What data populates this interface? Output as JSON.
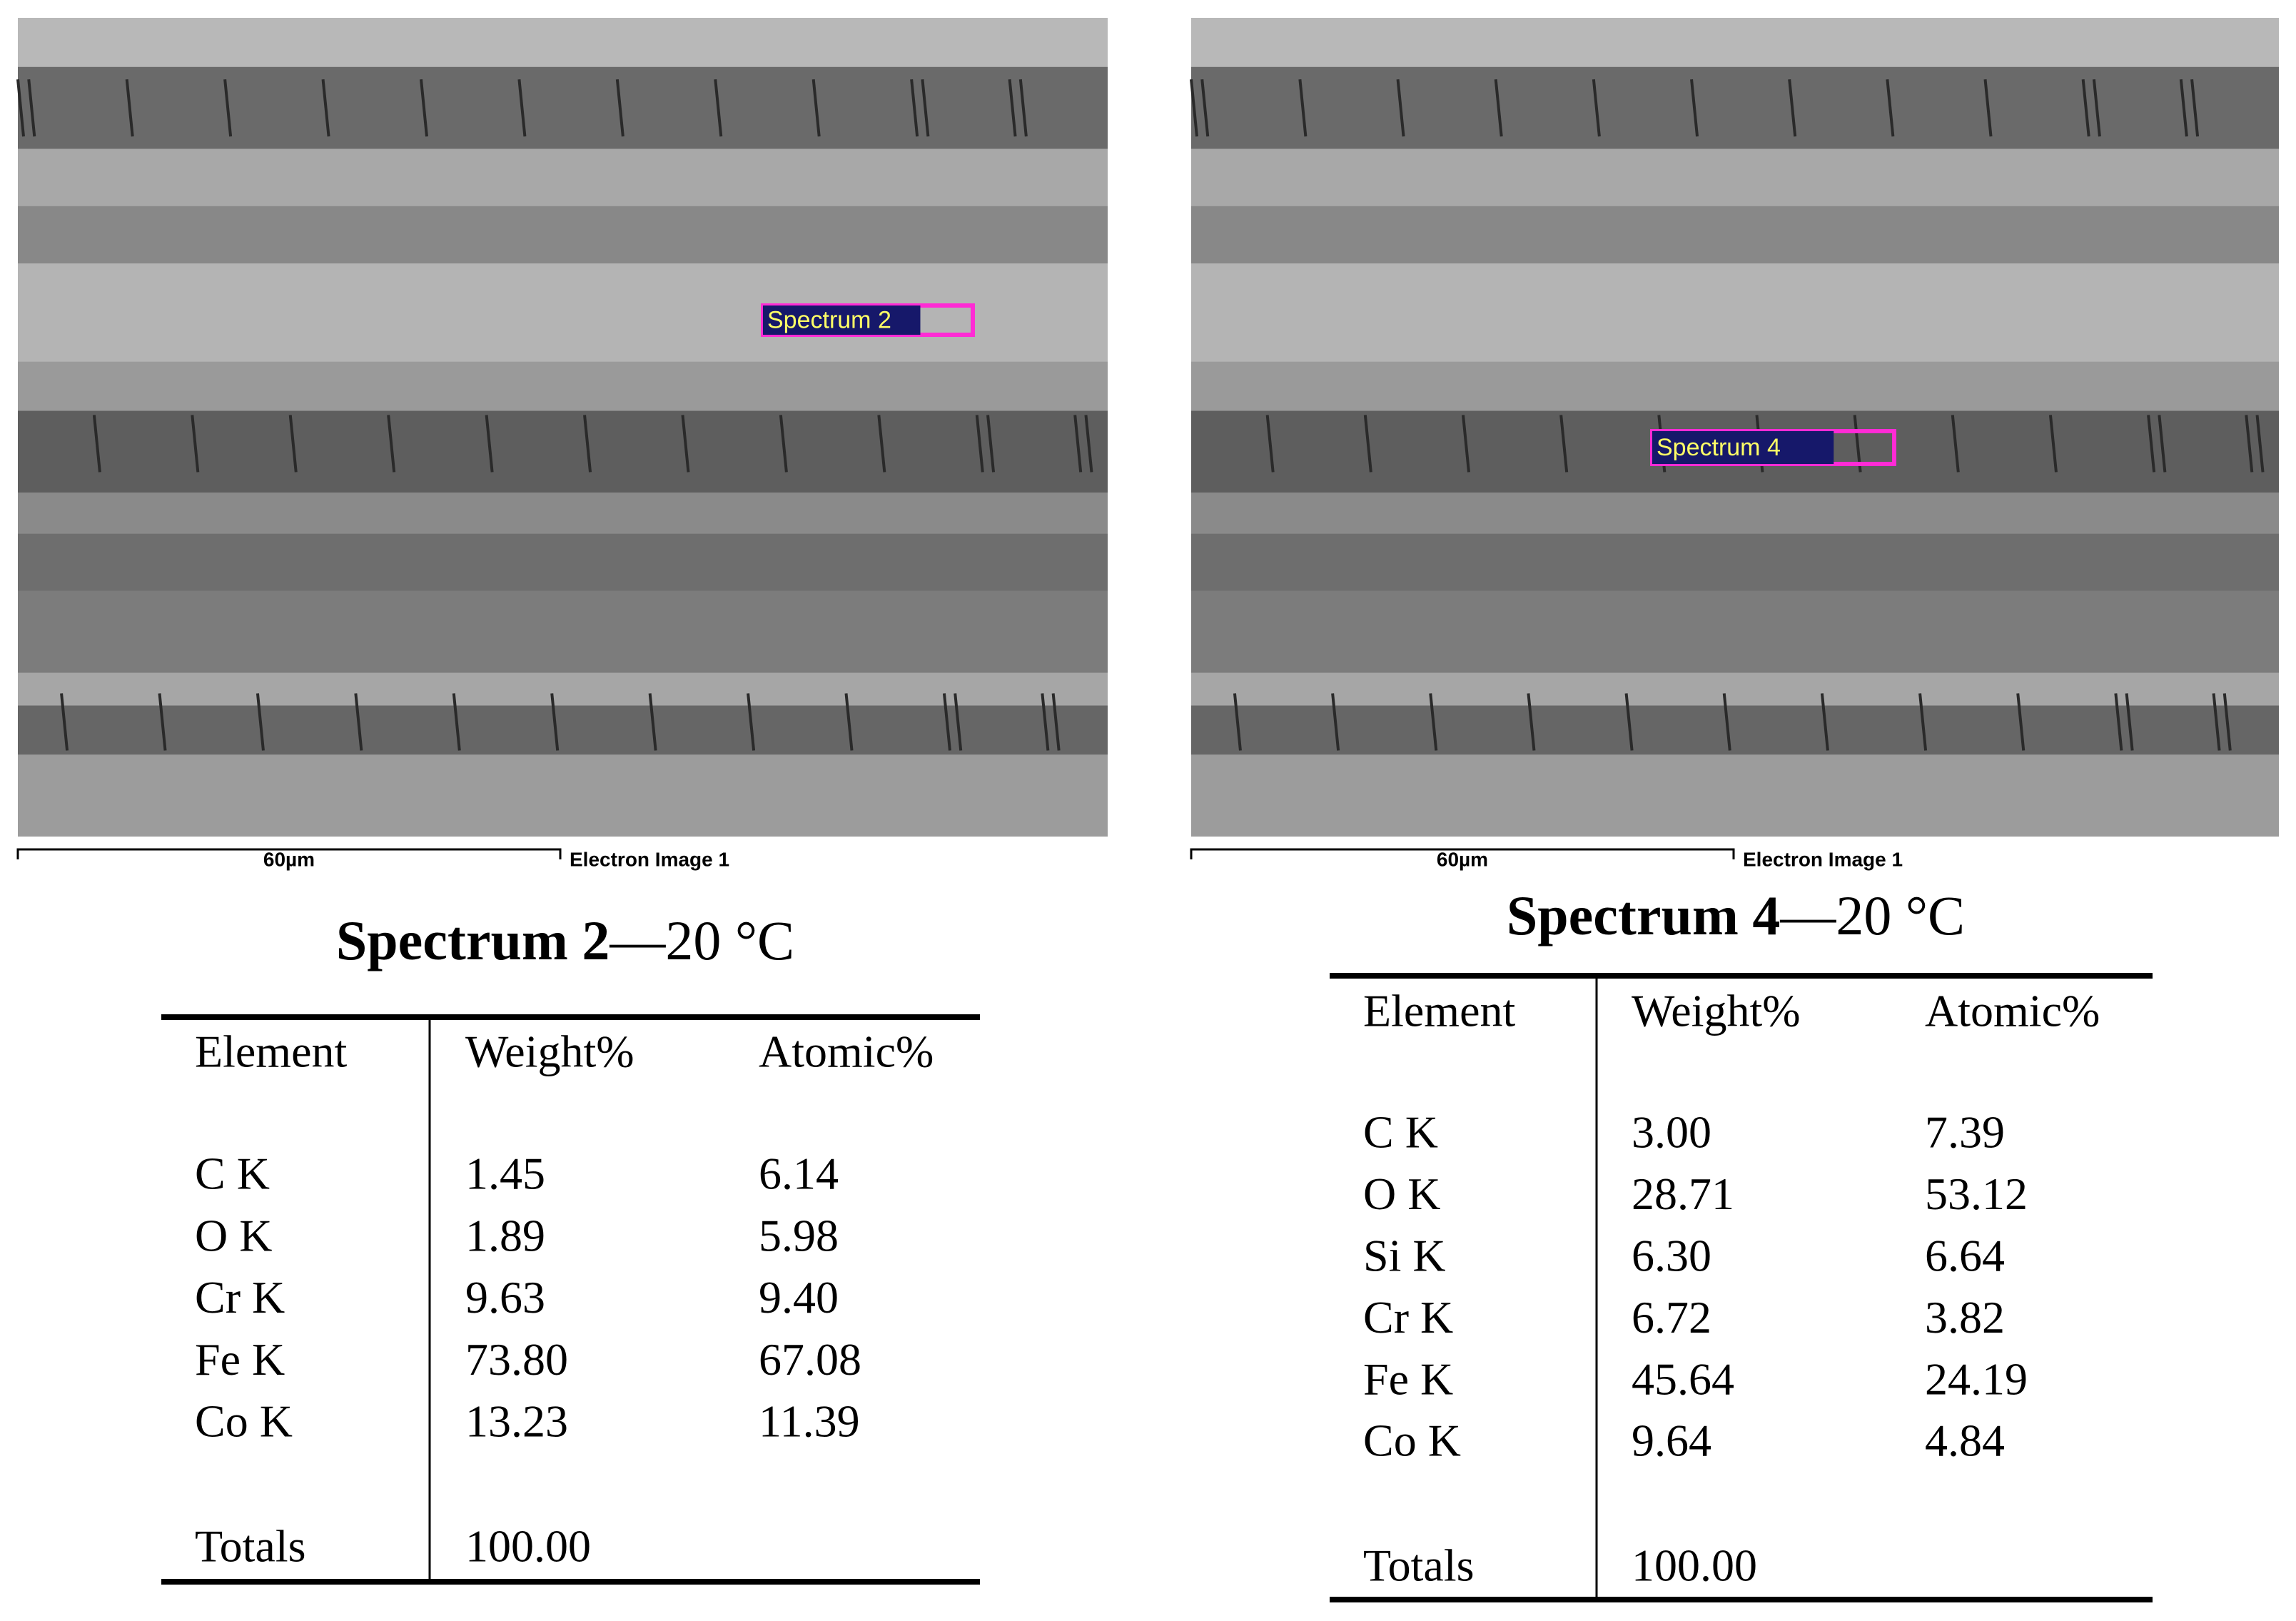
{
  "panels": [
    {
      "image": {
        "marker": "Spectrum 2",
        "scale_bar": "60µm",
        "caption": "Electron Image 1"
      },
      "title": {
        "bold": "Spectrum 2",
        "rest": "—20 °C"
      },
      "table": {
        "header": [
          "Element",
          "Weight%",
          "Atomic%"
        ],
        "rows": [
          [
            "C K",
            "1.45",
            "6.14"
          ],
          [
            "O K",
            "1.89",
            "5.98"
          ],
          [
            "Cr K",
            "9.63",
            "9.40"
          ],
          [
            "Fe K",
            "73.80",
            "67.08"
          ],
          [
            "Co K",
            "13.23",
            "11.39"
          ]
        ],
        "totals": [
          "Totals",
          "100.00"
        ]
      }
    },
    {
      "image": {
        "marker": "Spectrum 4",
        "scale_bar": "60µm",
        "caption": "Electron Image 1"
      },
      "title": {
        "bold": "Spectrum 4",
        "rest": "—20 °C"
      },
      "table": {
        "header": [
          "Element",
          "Weight%",
          "Atomic%"
        ],
        "rows": [
          [
            "C K",
            "3.00",
            "7.39"
          ],
          [
            "O K",
            "28.71",
            "53.12"
          ],
          [
            "Si K",
            "6.30",
            "6.64"
          ],
          [
            "Cr K",
            "6.72",
            "3.82"
          ],
          [
            "Fe K",
            "45.64",
            "24.19"
          ],
          [
            "Co K",
            "9.64",
            "4.84"
          ]
        ],
        "totals": [
          "Totals",
          "100.00"
        ]
      }
    }
  ]
}
